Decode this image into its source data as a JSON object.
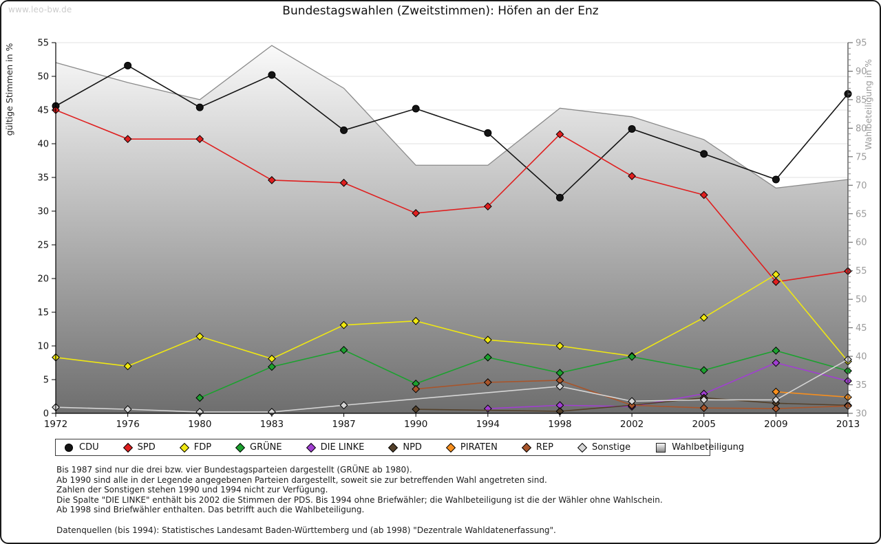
{
  "watermark": "www.leo-bw.de",
  "title": "Bundestagswahlen (Zweitstimmen): Höfen an der Enz",
  "chart_data": {
    "type": "line",
    "categories": [
      "1972",
      "1976",
      "1980",
      "1983",
      "1987",
      "1990",
      "1994",
      "1998",
      "2002",
      "2005",
      "2009",
      "2013"
    ],
    "left_axis": {
      "label": "gültige Stimmen in %",
      "min": 0,
      "max": 55,
      "step": 5
    },
    "right_axis": {
      "label": "Wahlbeteiligung in %",
      "min": 30,
      "max": 95,
      "step": 5
    },
    "grid": "horizontal",
    "legend_position": "bottom",
    "series": [
      {
        "name": "CDU",
        "color": "#141414",
        "marker": "circle",
        "values": [
          45.6,
          51.6,
          45.4,
          50.2,
          42.0,
          45.2,
          41.6,
          32.0,
          42.2,
          38.5,
          34.7,
          47.4
        ]
      },
      {
        "name": "SPD",
        "color": "#df1f1f",
        "marker": "diamond",
        "values": [
          45.0,
          40.7,
          40.7,
          34.6,
          34.2,
          29.7,
          30.7,
          41.4,
          35.2,
          32.4,
          19.5,
          21.1
        ]
      },
      {
        "name": "FDP",
        "color": "#f0e812",
        "marker": "diamond",
        "values": [
          8.3,
          7.0,
          11.4,
          8.1,
          13.1,
          13.7,
          10.9,
          10.0,
          8.5,
          14.2,
          20.6,
          7.7
        ]
      },
      {
        "name": "GRÜNE",
        "color": "#1ca12f",
        "marker": "diamond",
        "values": [
          null,
          null,
          2.3,
          6.9,
          9.4,
          4.4,
          8.3,
          6.0,
          8.4,
          6.4,
          9.3,
          6.3
        ]
      },
      {
        "name": "DIE LINKE",
        "color": "#a13fd2",
        "marker": "diamond",
        "values": [
          null,
          null,
          null,
          null,
          null,
          null,
          0.7,
          1.2,
          1.0,
          2.9,
          7.5,
          4.8
        ]
      },
      {
        "name": "NPD",
        "color": "#53402a",
        "marker": "diamond",
        "values": [
          null,
          null,
          null,
          null,
          null,
          0.6,
          null,
          0.3,
          1.2,
          2.3,
          1.5,
          1.2
        ]
      },
      {
        "name": "PIRATEN",
        "color": "#f78f1e",
        "marker": "diamond",
        "values": [
          null,
          null,
          null,
          null,
          null,
          null,
          null,
          null,
          null,
          null,
          3.2,
          2.4
        ]
      },
      {
        "name": "REP",
        "color": "#a8552b",
        "marker": "diamond",
        "values": [
          null,
          null,
          null,
          null,
          null,
          3.6,
          4.6,
          4.9,
          1.2,
          0.8,
          0.7,
          1.1
        ]
      },
      {
        "name": "Sonstige",
        "color": "#d6d6d6",
        "marker": "diamond",
        "values": [
          0.9,
          0.6,
          0.2,
          0.2,
          1.2,
          null,
          null,
          4.0,
          1.8,
          2.0,
          2.0,
          8.0
        ]
      }
    ],
    "participation": {
      "name": "Wahlbeteiligung",
      "axis": "right",
      "fill_gradient": [
        "#fbfbfb",
        "#6e6e6e"
      ],
      "edge_color": "#8a8a8a",
      "values": [
        91.5,
        88.0,
        85.0,
        94.5,
        87.0,
        73.5,
        73.5,
        83.5,
        82.0,
        78.0,
        69.5,
        71.0
      ]
    }
  },
  "notes": [
    "Bis 1987 sind nur die drei bzw. vier Bundestagsparteien dargestellt (GRÜNE ab 1980).",
    "Ab 1990 sind alle in der Legende angegebenen Parteien dargestellt, soweit sie zur betreffenden Wahl angetreten sind.",
    "Zahlen der Sonstigen stehen 1990 und 1994 nicht zur Verfügung.",
    "Die Spalte \"DIE LINKE\" enthält bis 2002 die Stimmen der PDS. Bis 1994 ohne Briefwähler; die Wahlbeteiligung ist die der Wähler ohne Wahlschein.",
    "Ab 1998 sind Briefwähler enthalten. Das betrifft auch die Wahlbeteiligung."
  ],
  "source": "Datenquellen (bis 1994): Statistisches Landesamt Baden-Württemberg und (ab 1998) \"Dezentrale Wahldatenerfassung\"."
}
